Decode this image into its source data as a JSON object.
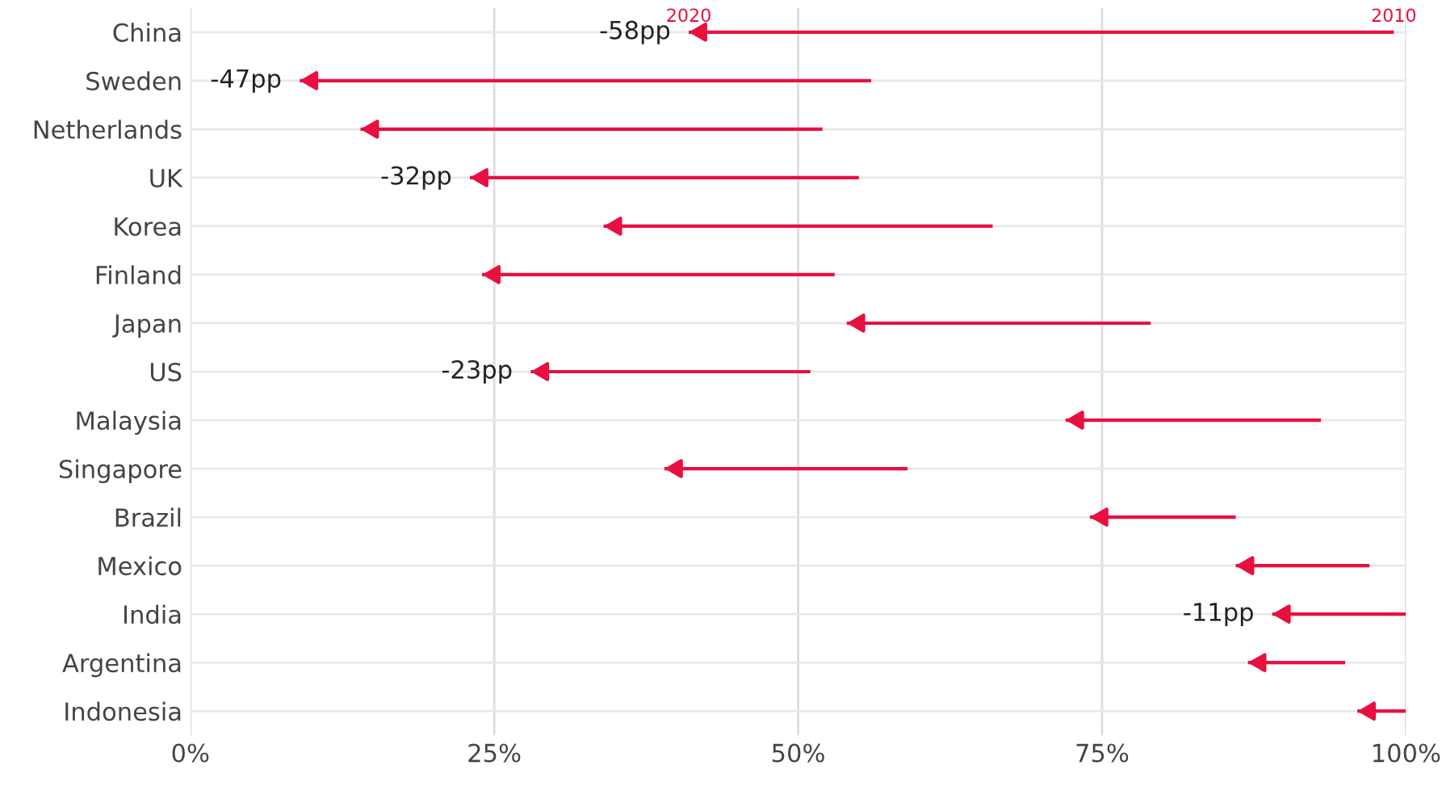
{
  "chart_data": {
    "type": "bar",
    "orientation": "horizontal",
    "categories": [
      "China",
      "Sweden",
      "Netherlands",
      "UK",
      "Korea",
      "Finland",
      "Japan",
      "US",
      "Malaysia",
      "Singapore",
      "Brazil",
      "Mexico",
      "India",
      "Argentina",
      "Indonesia"
    ],
    "base": [
      99,
      56,
      52,
      55,
      66,
      53,
      79,
      51,
      93,
      59,
      86,
      97,
      100,
      95,
      100
    ],
    "values": [
      -58,
      -47,
      -38,
      -32,
      -32,
      -29,
      -25,
      -23,
      -21,
      -20,
      -12,
      -11,
      -11,
      -8,
      -4
    ],
    "value_labels": [
      "-58pp",
      "-47pp",
      null,
      "-32pp",
      null,
      null,
      null,
      "-23pp",
      null,
      null,
      null,
      null,
      "-11pp",
      null,
      null
    ],
    "color": "#e8103f",
    "xlim": [
      0,
      100
    ],
    "xticks": [
      {
        "value": 0,
        "label": "0%"
      },
      {
        "value": 25,
        "label": "25%"
      },
      {
        "value": 50,
        "label": "50%"
      },
      {
        "value": 75,
        "label": "75%"
      },
      {
        "value": 100,
        "label": "100%"
      }
    ],
    "grid": true,
    "annotations": [
      {
        "text": "2020",
        "x": 41,
        "y": "China"
      },
      {
        "text": "2010",
        "x": 99,
        "y": "China"
      }
    ]
  }
}
